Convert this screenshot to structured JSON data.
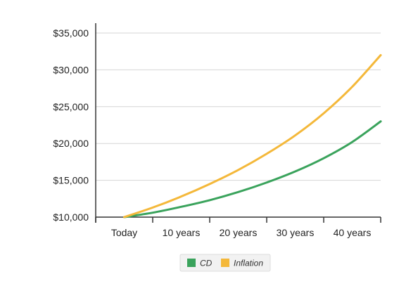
{
  "chart_data": {
    "type": "line",
    "categories": [
      "Today",
      "10 years",
      "20 years",
      "30 years",
      "40 years"
    ],
    "ylim": [
      10000,
      35000
    ],
    "y_ticks": [
      {
        "value": 10000,
        "label": "$10,000"
      },
      {
        "value": 15000,
        "label": "$15,000"
      },
      {
        "value": 20000,
        "label": "$20,000"
      },
      {
        "value": 25000,
        "label": "$25,000"
      },
      {
        "value": 30000,
        "label": "$30,000"
      },
      {
        "value": 35000,
        "label": "$35,000"
      }
    ],
    "grid": "horizontal",
    "legend_position": "bottom-center",
    "series": [
      {
        "name": "CD",
        "color": "#3aa35c",
        "x": [
          0,
          5,
          10,
          15,
          20,
          25,
          30,
          35,
          40,
          45
        ],
        "values": [
          10000,
          10600,
          11400,
          12300,
          13400,
          14700,
          16200,
          18000,
          20200,
          23000
        ]
      },
      {
        "name": "Inflation",
        "color": "#f4b83a",
        "x": [
          0,
          5,
          10,
          15,
          20,
          25,
          30,
          35,
          40,
          45
        ],
        "values": [
          10000,
          11300,
          12800,
          14500,
          16400,
          18600,
          21100,
          24100,
          27700,
          32000
        ]
      }
    ]
  }
}
